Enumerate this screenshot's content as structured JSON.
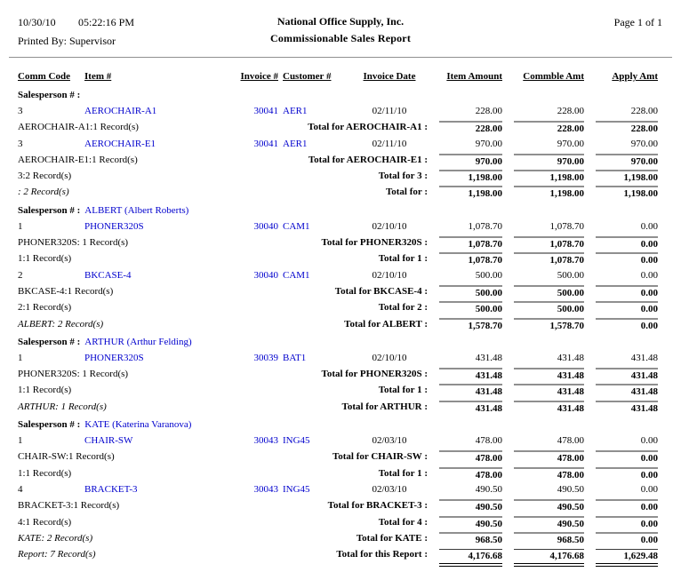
{
  "page": {
    "date": "10/30/10",
    "time": "05:22:16 PM",
    "company": "National Office Supply, Inc.",
    "page_label": "Page 1 of 1",
    "printed_by": "Printed By: Supervisor",
    "title": "Commissionable Sales Report"
  },
  "colors": {
    "link_blue": "#0000CD",
    "rule_gray": "#8F8F8F"
  },
  "report": {
    "columns": [
      "Comm Code",
      "Item #",
      "Invoice #",
      "Customer #",
      "Invoice Date",
      "Item Amount",
      "Commble Amt",
      "Apply Amt"
    ],
    "rows": [
      {
        "type": "group",
        "label": "Salesperson # :",
        "name": ""
      },
      {
        "type": "detail",
        "comm": "3",
        "item": "AEROCHAIR-A1",
        "invoice": "30041",
        "customer": "AER1",
        "date": "02/11/10",
        "amounts": [
          "228.00",
          "228.00",
          "228.00"
        ]
      },
      {
        "type": "total",
        "left": "AEROCHAIR-A1:1 Record(s)",
        "italic": false,
        "label": "Total for AEROCHAIR-A1 :",
        "amounts": [
          "228.00",
          "228.00",
          "228.00"
        ]
      },
      {
        "type": "detail",
        "comm": "3",
        "item": "AEROCHAIR-E1",
        "invoice": "30041",
        "customer": "AER1",
        "date": "02/11/10",
        "amounts": [
          "970.00",
          "970.00",
          "970.00"
        ]
      },
      {
        "type": "total",
        "left": "AEROCHAIR-E1:1 Record(s)",
        "italic": false,
        "label": "Total for AEROCHAIR-E1 :",
        "amounts": [
          "970.00",
          "970.00",
          "970.00"
        ]
      },
      {
        "type": "total",
        "left": "3:2 Record(s)",
        "italic": false,
        "label": "Total for 3 :",
        "amounts": [
          "1,198.00",
          "1,198.00",
          "1,198.00"
        ]
      },
      {
        "type": "total",
        "left": ": 2 Record(s)",
        "italic": true,
        "label": "Total for :",
        "amounts": [
          "1,198.00",
          "1,198.00",
          "1,198.00"
        ]
      },
      {
        "type": "group",
        "label": "Salesperson # :",
        "name": "ALBERT (Albert Roberts)"
      },
      {
        "type": "detail",
        "comm": "1",
        "item": "PHONER320S",
        "invoice": "30040",
        "customer": "CAM1",
        "date": "02/10/10",
        "amounts": [
          "1,078.70",
          "1,078.70",
          "0.00"
        ]
      },
      {
        "type": "total",
        "left": "PHONER320S: 1 Record(s)",
        "italic": false,
        "label": "Total for PHONER320S :",
        "amounts": [
          "1,078.70",
          "1,078.70",
          "0.00"
        ]
      },
      {
        "type": "total",
        "left": "1:1 Record(s)",
        "italic": false,
        "label": "Total for 1 :",
        "amounts": [
          "1,078.70",
          "1,078.70",
          "0.00"
        ]
      },
      {
        "type": "detail",
        "comm": "2",
        "item": "BKCASE-4",
        "invoice": "30040",
        "customer": "CAM1",
        "date": "02/10/10",
        "amounts": [
          "500.00",
          "500.00",
          "0.00"
        ]
      },
      {
        "type": "total",
        "left": "BKCASE-4:1 Record(s)",
        "italic": false,
        "label": "Total for BKCASE-4 :",
        "amounts": [
          "500.00",
          "500.00",
          "0.00"
        ]
      },
      {
        "type": "total",
        "left": "2:1 Record(s)",
        "italic": false,
        "label": "Total for 2 :",
        "amounts": [
          "500.00",
          "500.00",
          "0.00"
        ]
      },
      {
        "type": "total",
        "left": "ALBERT: 2 Record(s)",
        "italic": true,
        "label": "Total for ALBERT :",
        "amounts": [
          "1,578.70",
          "1,578.70",
          "0.00"
        ]
      },
      {
        "type": "group",
        "label": "Salesperson # :",
        "name": "ARTHUR (Arthur Felding)"
      },
      {
        "type": "detail",
        "comm": "1",
        "item": "PHONER320S",
        "invoice": "30039",
        "customer": "BAT1",
        "date": "02/10/10",
        "amounts": [
          "431.48",
          "431.48",
          "431.48"
        ]
      },
      {
        "type": "total",
        "left": "PHONER320S: 1 Record(s)",
        "italic": false,
        "label": "Total for PHONER320S :",
        "amounts": [
          "431.48",
          "431.48",
          "431.48"
        ]
      },
      {
        "type": "total",
        "left": "1:1 Record(s)",
        "italic": false,
        "label": "Total for 1 :",
        "amounts": [
          "431.48",
          "431.48",
          "431.48"
        ]
      },
      {
        "type": "total",
        "left": "ARTHUR: 1 Record(s)",
        "italic": true,
        "label": "Total for ARTHUR :",
        "amounts": [
          "431.48",
          "431.48",
          "431.48"
        ]
      },
      {
        "type": "group",
        "label": "Salesperson # :",
        "name": "KATE (Katerina Varanova)"
      },
      {
        "type": "detail",
        "comm": "1",
        "item": "CHAIR-SW",
        "invoice": "30043",
        "customer": "ING45",
        "date": "02/03/10",
        "amounts": [
          "478.00",
          "478.00",
          "0.00"
        ]
      },
      {
        "type": "total",
        "left": "CHAIR-SW:1 Record(s)",
        "italic": false,
        "label": "Total for CHAIR-SW :",
        "amounts": [
          "478.00",
          "478.00",
          "0.00"
        ]
      },
      {
        "type": "total",
        "left": "1:1 Record(s)",
        "italic": false,
        "label": "Total for 1 :",
        "amounts": [
          "478.00",
          "478.00",
          "0.00"
        ]
      },
      {
        "type": "detail",
        "comm": "4",
        "item": "BRACKET-3",
        "invoice": "30043",
        "customer": "ING45",
        "date": "02/03/10",
        "amounts": [
          "490.50",
          "490.50",
          "0.00"
        ]
      },
      {
        "type": "total",
        "left": "BRACKET-3:1 Record(s)",
        "italic": false,
        "label": "Total for BRACKET-3 :",
        "amounts": [
          "490.50",
          "490.50",
          "0.00"
        ]
      },
      {
        "type": "total",
        "left": "4:1 Record(s)",
        "italic": false,
        "label": "Total for 4 :",
        "amounts": [
          "490.50",
          "490.50",
          "0.00"
        ]
      },
      {
        "type": "total",
        "left": "KATE: 2 Record(s)",
        "italic": true,
        "label": "Total for KATE :",
        "amounts": [
          "968.50",
          "968.50",
          "0.00"
        ]
      },
      {
        "type": "total",
        "left": "Report: 7 Record(s)",
        "italic": true,
        "label": "Total for this Report :",
        "amounts": [
          "4,176.68",
          "4,176.68",
          "1,629.48"
        ],
        "report": true
      }
    ]
  }
}
